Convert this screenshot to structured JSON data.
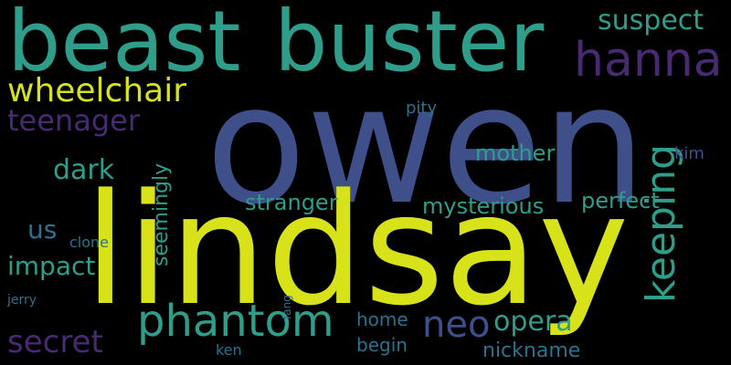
{
  "background": "#000000",
  "palette": {
    "yellow": "#d7e219",
    "teal": "#2e9e8a",
    "slate": "#3e4f8a",
    "purple": "#482a72",
    "green": "#5cc863",
    "blueteal": "#2c728e"
  },
  "words": {
    "owen": "owen",
    "lindsay": "lindsay",
    "beast": "beast",
    "buster": "buster",
    "hanna": "hanna",
    "phantom": "phantom",
    "wheelchair": "wheelchair",
    "teenager": "teenager",
    "suspect": "suspect",
    "keeping": "keeping",
    "neo": "neo",
    "opera": "opera",
    "secret": "secret",
    "impact": "impact",
    "dark": "dark",
    "mother": "mother",
    "stranger": "stranger",
    "mysterious": "mysterious",
    "perfect": "perfect",
    "seemingly": "seemingly",
    "us": "us",
    "nickname": "nickname",
    "home": "home",
    "begin": "begin",
    "pity": "pity",
    "kim": "kim",
    "clone": "clone",
    "jerry": "jerry",
    "ken": "ken",
    "fang": "fang"
  }
}
